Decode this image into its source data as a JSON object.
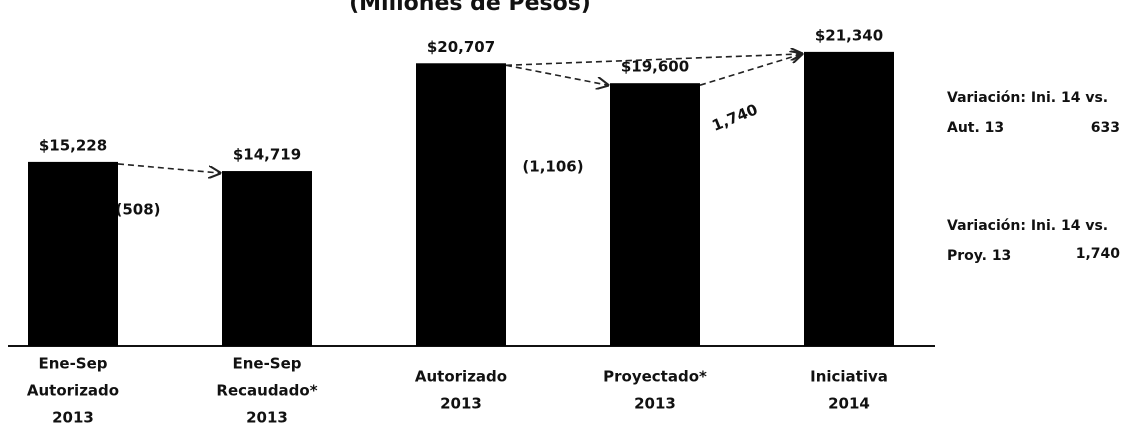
{
  "chart_data": {
    "type": "bar",
    "title": "(Millones de Pesos)",
    "categories": [
      [
        "Ene-Sep",
        "Autorizado",
        "2013"
      ],
      [
        "Ene-Sep",
        "Recaudado*",
        "2013"
      ],
      [
        "Autorizado",
        "2013"
      ],
      [
        "Proyectado*",
        "2013"
      ],
      [
        "Iniciativa",
        "2014"
      ]
    ],
    "values": [
      15228,
      14719,
      20707,
      19600,
      21340
    ],
    "value_labels": [
      "$15,228",
      "$14,719",
      "$20,707",
      "$19,600",
      "$21,340"
    ],
    "color": "#000000",
    "ylim": [
      5000,
      22000
    ],
    "annotations": {
      "diff_1": "(508)",
      "diff_2": "(1,106)",
      "diff_3": "1,740",
      "note_1": [
        "Variación: Ini. 14 vs.",
        "Aut. 13",
        "633"
      ],
      "note_2": [
        "Variación: Ini. 14 vs.",
        "Proy. 13",
        "1,740"
      ]
    }
  }
}
